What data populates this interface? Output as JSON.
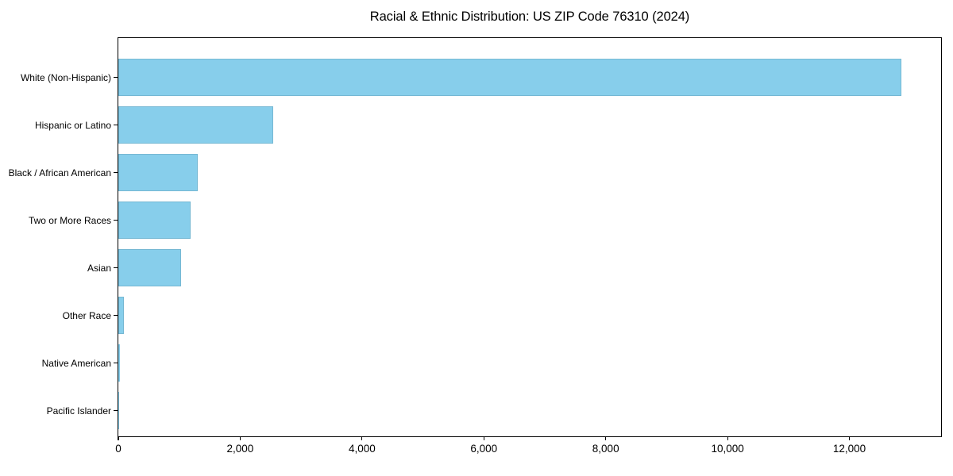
{
  "chart_data": {
    "type": "bar",
    "orientation": "horizontal",
    "title": "Racial & Ethnic Distribution: US ZIP Code 76310 (2024)",
    "categories": [
      "White (Non-Hispanic)",
      "Hispanic or Latino",
      "Black / African American",
      "Two or More Races",
      "Asian",
      "Other Race",
      "Native American",
      "Pacific Islander"
    ],
    "values": [
      12855,
      2540,
      1300,
      1185,
      1030,
      90,
      20,
      5
    ],
    "xlabel": "",
    "ylabel": "",
    "xlim": [
      0,
      13500
    ],
    "x_ticks": [
      0,
      2000,
      4000,
      6000,
      8000,
      10000,
      12000
    ],
    "x_tick_labels": [
      "0",
      "2,000",
      "4,000",
      "6,000",
      "8,000",
      "10,000",
      "12,000"
    ],
    "bar_color": "#87CEEB",
    "bar_edge_color": "rgba(104,166,192,0.55)",
    "grid": false,
    "legend": false
  }
}
